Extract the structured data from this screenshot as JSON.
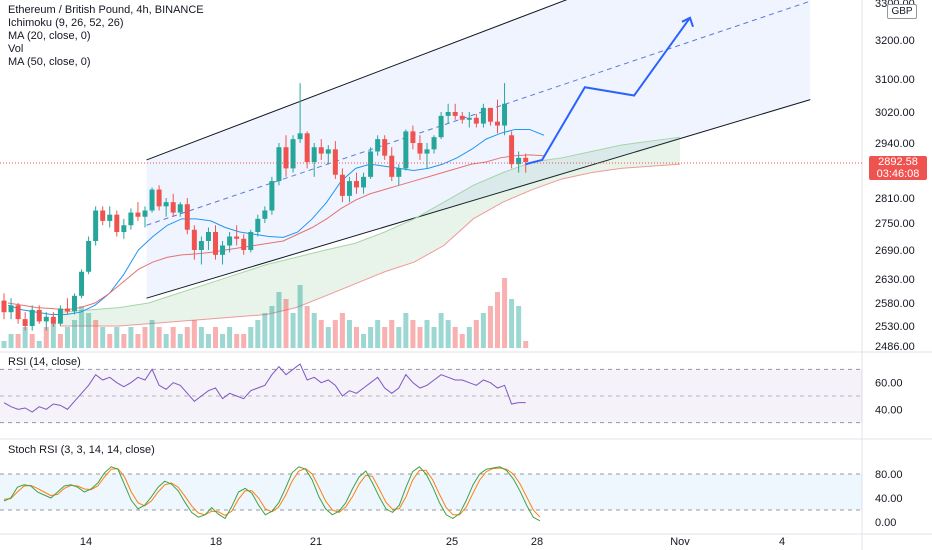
{
  "header": {
    "title": "Ethereum / British Pound, 4h, BINANCE",
    "indicators": [
      "Ichimoku (9, 26, 52, 26)",
      "MA (20, close, 0)",
      "Vol",
      "MA (50, close, 0)"
    ],
    "currency": "GBP"
  },
  "price_tag": {
    "price": "2892.58",
    "countdown": "03:46:08"
  },
  "price_axis": {
    "ticks": [
      "3300.00",
      "3200.00",
      "3100.00",
      "3020.00",
      "2940.00",
      "2810.00",
      "2750.00",
      "2690.00",
      "2630.00",
      "2580.00",
      "2530.00",
      "2486.00"
    ]
  },
  "time_axis": {
    "ticks": [
      "14",
      "18",
      "21",
      "25",
      "28",
      "Nov",
      "4"
    ]
  },
  "rsi_pane": {
    "label": "RSI (14, close)",
    "ticks": [
      "60.00",
      "40.00"
    ]
  },
  "stoch_pane": {
    "label": "Stoch RSI (3, 3, 14, 14, close)",
    "ticks": [
      "80.00",
      "40.00",
      "0.00"
    ]
  },
  "colors": {
    "bull": "#26a69a",
    "bear": "#ef5350",
    "ma20": "#2196f3",
    "ma50": "#e57373",
    "rsi": "#7e57c2",
    "stoch_k": "#43a047",
    "stoch_d": "#ff7f0e",
    "projection": "#2962ff",
    "channel": "#131722",
    "grid": "#f0f3fa"
  },
  "chart_data": [
    {
      "type": "candlestick",
      "symbol": "ETHGBP",
      "interval": "4h",
      "ylim": [
        2486,
        3300
      ],
      "x_range": [
        "Oct 11",
        "Nov 5"
      ],
      "last_price": 2892.58,
      "candles": [
        [
          2585,
          2600,
          2545,
          2560
        ],
        [
          2560,
          2590,
          2545,
          2575
        ],
        [
          2575,
          2580,
          2535,
          2545
        ],
        [
          2545,
          2560,
          2520,
          2530
        ],
        [
          2530,
          2575,
          2520,
          2565
        ],
        [
          2565,
          2575,
          2535,
          2540
        ],
        [
          2540,
          2560,
          2520,
          2550
        ],
        [
          2550,
          2560,
          2528,
          2535
        ],
        [
          2535,
          2575,
          2530,
          2568
        ],
        [
          2568,
          2590,
          2555,
          2562
        ],
        [
          2562,
          2600,
          2555,
          2595
        ],
        [
          2595,
          2650,
          2590,
          2645
        ],
        [
          2645,
          2720,
          2640,
          2710
        ],
        [
          2710,
          2790,
          2700,
          2780
        ],
        [
          2780,
          2790,
          2745,
          2755
        ],
        [
          2755,
          2790,
          2740,
          2770
        ],
        [
          2770,
          2780,
          2720,
          2730
        ],
        [
          2730,
          2760,
          2715,
          2745
        ],
        [
          2745,
          2785,
          2735,
          2775
        ],
        [
          2775,
          2800,
          2755,
          2765
        ],
        [
          2765,
          2790,
          2740,
          2780
        ],
        [
          2780,
          2835,
          2775,
          2830
        ],
        [
          2830,
          2840,
          2780,
          2790
        ],
        [
          2790,
          2810,
          2765,
          2800
        ],
        [
          2800,
          2820,
          2765,
          2775
        ],
        [
          2775,
          2800,
          2765,
          2795
        ],
        [
          2795,
          2810,
          2725,
          2735
        ],
        [
          2735,
          2745,
          2670,
          2690
        ],
        [
          2690,
          2720,
          2660,
          2710
        ],
        [
          2710,
          2740,
          2690,
          2730
        ],
        [
          2730,
          2745,
          2670,
          2680
        ],
        [
          2680,
          2710,
          2660,
          2700
        ],
        [
          2700,
          2730,
          2685,
          2720
        ],
        [
          2720,
          2745,
          2700,
          2715
        ],
        [
          2715,
          2725,
          2680,
          2690
        ],
        [
          2690,
          2735,
          2685,
          2730
        ],
        [
          2730,
          2770,
          2720,
          2760
        ],
        [
          2760,
          2790,
          2750,
          2780
        ],
        [
          2780,
          2860,
          2770,
          2850
        ],
        [
          2850,
          2940,
          2840,
          2930
        ],
        [
          2930,
          2960,
          2860,
          2880
        ],
        [
          2880,
          2960,
          2870,
          2950
        ],
        [
          2950,
          3090,
          2940,
          2965
        ],
        [
          2965,
          2970,
          2880,
          2895
        ],
        [
          2895,
          2940,
          2860,
          2930
        ],
        [
          2930,
          2950,
          2900,
          2915
        ],
        [
          2915,
          2935,
          2890,
          2925
        ],
        [
          2925,
          2945,
          2855,
          2865
        ],
        [
          2865,
          2880,
          2800,
          2815
        ],
        [
          2815,
          2860,
          2800,
          2850
        ],
        [
          2850,
          2870,
          2820,
          2835
        ],
        [
          2835,
          2870,
          2820,
          2860
        ],
        [
          2860,
          2930,
          2855,
          2920
        ],
        [
          2920,
          2960,
          2910,
          2950
        ],
        [
          2950,
          2960,
          2900,
          2910
        ],
        [
          2910,
          2930,
          2850,
          2860
        ],
        [
          2860,
          2890,
          2840,
          2880
        ],
        [
          2880,
          2975,
          2875,
          2970
        ],
        [
          2970,
          2985,
          2925,
          2940
        ],
        [
          2940,
          2960,
          2900,
          2915
        ],
        [
          2915,
          2940,
          2880,
          2925
        ],
        [
          2925,
          2960,
          2915,
          2955
        ],
        [
          2955,
          3020,
          2950,
          3010
        ],
        [
          3010,
          3040,
          2990,
          3020
        ],
        [
          3020,
          3040,
          3000,
          3010
        ],
        [
          3010,
          3020,
          2990,
          3000
        ],
        [
          3000,
          3020,
          2980,
          3005
        ],
        [
          3005,
          3015,
          2980,
          2990
        ],
        [
          2990,
          3040,
          2980,
          3030
        ],
        [
          3030,
          3030,
          2985,
          2995
        ],
        [
          2995,
          3050,
          2965,
          2985
        ],
        [
          2985,
          3090,
          2960,
          3040
        ],
        [
          2960,
          2970,
          2880,
          2890
        ],
        [
          2890,
          2920,
          2870,
          2905
        ],
        [
          2905,
          2915,
          2870,
          2895
        ]
      ],
      "volume": [
        [
          1,
          true
        ],
        [
          2,
          true
        ],
        [
          2,
          false
        ],
        [
          3,
          true
        ],
        [
          2,
          false
        ],
        [
          1,
          true
        ],
        [
          3,
          false
        ],
        [
          4,
          true
        ],
        [
          2,
          false
        ],
        [
          3,
          true
        ],
        [
          4,
          true
        ],
        [
          6,
          true
        ],
        [
          5,
          true
        ],
        [
          4,
          false
        ],
        [
          3,
          true
        ],
        [
          2,
          false
        ],
        [
          3,
          true
        ],
        [
          2,
          false
        ],
        [
          3,
          true
        ],
        [
          2,
          false
        ],
        [
          3,
          false
        ],
        [
          4,
          true
        ],
        [
          3,
          false
        ],
        [
          2,
          true
        ],
        [
          3,
          false
        ],
        [
          2,
          true
        ],
        [
          3,
          false
        ],
        [
          4,
          false
        ],
        [
          3,
          true
        ],
        [
          2,
          true
        ],
        [
          3,
          false
        ],
        [
          2,
          true
        ],
        [
          3,
          true
        ],
        [
          2,
          false
        ],
        [
          2,
          false
        ],
        [
          3,
          true
        ],
        [
          4,
          true
        ],
        [
          5,
          true
        ],
        [
          6,
          true
        ],
        [
          8,
          true
        ],
        [
          7,
          false
        ],
        [
          5,
          true
        ],
        [
          9,
          true
        ],
        [
          6,
          false
        ],
        [
          5,
          true
        ],
        [
          4,
          false
        ],
        [
          3,
          true
        ],
        [
          4,
          false
        ],
        [
          5,
          false
        ],
        [
          4,
          true
        ],
        [
          3,
          false
        ],
        [
          2,
          true
        ],
        [
          3,
          true
        ],
        [
          4,
          true
        ],
        [
          3,
          false
        ],
        [
          4,
          false
        ],
        [
          3,
          true
        ],
        [
          5,
          true
        ],
        [
          4,
          false
        ],
        [
          3,
          false
        ],
        [
          4,
          true
        ],
        [
          3,
          true
        ],
        [
          5,
          true
        ],
        [
          4,
          true
        ],
        [
          3,
          false
        ],
        [
          2,
          false
        ],
        [
          3,
          true
        ],
        [
          4,
          false
        ],
        [
          5,
          true
        ],
        [
          6,
          false
        ],
        [
          8,
          false
        ],
        [
          10,
          false
        ],
        [
          7,
          true
        ],
        [
          6,
          true
        ],
        [
          1,
          false
        ]
      ],
      "channel": {
        "upper": [
          [
            0.17,
            2900
          ],
          [
            0.94,
            3560
          ]
        ],
        "lower": [
          [
            0.17,
            2590
          ],
          [
            0.94,
            3050
          ]
        ],
        "mid": [
          [
            0.17,
            2745
          ],
          [
            0.94,
            3305
          ]
        ]
      },
      "projection_path": [
        [
          2890,
          0
        ],
        [
          2900,
          0.05
        ],
        [
          3080,
          0.18
        ],
        [
          3060,
          0.33
        ],
        [
          3260,
          0.5
        ]
      ],
      "ichimoku_cloud": {
        "senkou_a": [
          2560,
          2565,
          2570,
          2580,
          2600,
          2620,
          2640,
          2660,
          2675,
          2690,
          2705,
          2730,
          2760,
          2800,
          2840,
          2870,
          2895,
          2905,
          2920,
          2935,
          2945,
          2955
        ],
        "senkou_b": [
          2530,
          2530,
          2530,
          2535,
          2540,
          2545,
          2550,
          2555,
          2570,
          2595,
          2620,
          2645,
          2665,
          2700,
          2760,
          2800,
          2830,
          2855,
          2870,
          2880,
          2885,
          2890
        ]
      },
      "ma20": [
        2575,
        2565,
        2560,
        2555,
        2555,
        2560,
        2575,
        2600,
        2640,
        2690,
        2720,
        2745,
        2760,
        2760,
        2755,
        2740,
        2730,
        2725,
        2720,
        2718,
        2730,
        2760,
        2800,
        2850,
        2880,
        2890,
        2885,
        2880,
        2875,
        2880,
        2890,
        2905,
        2925,
        2950,
        2965,
        2975,
        2975,
        2960
      ],
      "ma50": [
        2580,
        2575,
        2570,
        2568,
        2565,
        2570,
        2580,
        2600,
        2625,
        2650,
        2665,
        2675,
        2680,
        2682,
        2685,
        2690,
        2695,
        2700,
        2705,
        2710,
        2725,
        2740,
        2760,
        2785,
        2805,
        2820,
        2830,
        2840,
        2850,
        2860,
        2870,
        2880,
        2890,
        2895,
        2905,
        2910,
        2912,
        2910
      ]
    },
    {
      "type": "line",
      "name": "RSI (14, close)",
      "ylim": [
        20,
        80
      ],
      "levels": [
        70,
        30
      ],
      "values": [
        45,
        42,
        40,
        41,
        38,
        42,
        40,
        44,
        43,
        40,
        46,
        52,
        58,
        66,
        62,
        64,
        60,
        57,
        60,
        64,
        62,
        70,
        58,
        55,
        60,
        58,
        52,
        46,
        50,
        54,
        56,
        48,
        52,
        50,
        48,
        54,
        56,
        58,
        66,
        72,
        66,
        70,
        74,
        62,
        64,
        60,
        62,
        58,
        50,
        54,
        52,
        56,
        60,
        64,
        56,
        52,
        56,
        66,
        60,
        56,
        58,
        62,
        66,
        64,
        62,
        62,
        60,
        58,
        62,
        60,
        56,
        58,
        44,
        45,
        45
      ]
    },
    {
      "type": "line",
      "name": "Stoch RSI (3, 3, 14, 14, close)",
      "ylim": [
        0,
        100
      ],
      "levels": [
        80,
        20
      ],
      "k": [
        35,
        40,
        58,
        62,
        60,
        50,
        45,
        40,
        50,
        60,
        62,
        58,
        50,
        55,
        65,
        82,
        92,
        88,
        62,
        36,
        22,
        28,
        42,
        58,
        68,
        63,
        52,
        33,
        16,
        8,
        12,
        24,
        13,
        6,
        26,
        50,
        56,
        48,
        28,
        12,
        18,
        32,
        56,
        82,
        92,
        88,
        70,
        42,
        22,
        12,
        18,
        32,
        55,
        75,
        85,
        65,
        42,
        22,
        16,
        28,
        58,
        84,
        92,
        80,
        58,
        32,
        12,
        6,
        14,
        36,
        62,
        80,
        88,
        90,
        92,
        86,
        72,
        52,
        28,
        8,
        2
      ],
      "d": [
        38,
        39,
        50,
        60,
        61,
        56,
        50,
        44,
        46,
        56,
        61,
        60,
        55,
        54,
        60,
        75,
        88,
        89,
        75,
        50,
        32,
        27,
        35,
        50,
        62,
        65,
        58,
        43,
        27,
        15,
        12,
        18,
        17,
        11,
        18,
        38,
        52,
        52,
        40,
        22,
        17,
        25,
        44,
        68,
        85,
        89,
        80,
        58,
        35,
        20,
        16,
        25,
        42,
        63,
        78,
        76,
        55,
        33,
        21,
        22,
        42,
        70,
        86,
        86,
        70,
        46,
        24,
        12,
        12,
        25,
        48,
        70,
        84,
        89,
        90,
        88,
        80,
        64,
        42,
        20,
        8
      ]
    }
  ]
}
